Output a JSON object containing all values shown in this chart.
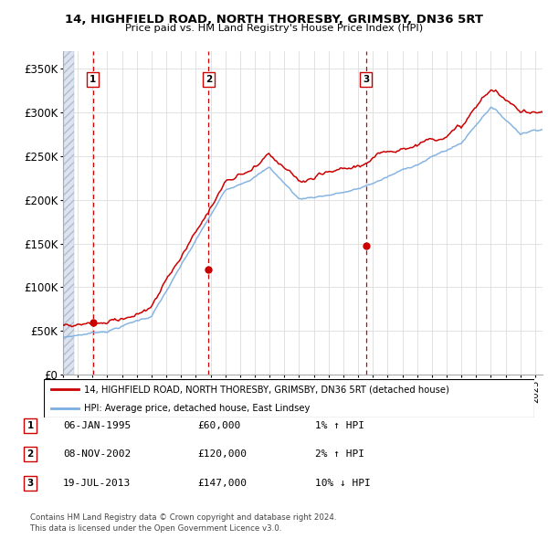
{
  "title": "14, HIGHFIELD ROAD, NORTH THORESBY, GRIMSBY, DN36 5RT",
  "subtitle": "Price paid vs. HM Land Registry's House Price Index (HPI)",
  "ylim": [
    0,
    370000
  ],
  "yticks": [
    0,
    50000,
    100000,
    150000,
    200000,
    250000,
    300000,
    350000
  ],
  "ytick_labels": [
    "£0",
    "£50K",
    "£100K",
    "£150K",
    "£200K",
    "£250K",
    "£300K",
    "£350K"
  ],
  "hpi_color": "#7aade0",
  "price_color": "#cc0000",
  "sale_dates": [
    1995.03,
    2002.86,
    2013.54
  ],
  "sale_prices": [
    60000,
    120000,
    147000
  ],
  "sale_labels": [
    "1",
    "2",
    "3"
  ],
  "vline_color": "#cc0000",
  "legend_price_label": "14, HIGHFIELD ROAD, NORTH THORESBY, GRIMSBY, DN36 5RT (detached house)",
  "legend_hpi_label": "HPI: Average price, detached house, East Lindsey",
  "table_entries": [
    {
      "label": "1",
      "date": "06-JAN-1995",
      "price": "£60,000",
      "hpi": "1% ↑ HPI"
    },
    {
      "label": "2",
      "date": "08-NOV-2002",
      "price": "£120,000",
      "hpi": "2% ↑ HPI"
    },
    {
      "label": "3",
      "date": "19-JUL-2013",
      "price": "£147,000",
      "hpi": "10% ↓ HPI"
    }
  ],
  "footer": "Contains HM Land Registry data © Crown copyright and database right 2024.\nThis data is licensed under the Open Government Licence v3.0.",
  "grid_color": "#dddddd",
  "bg_color": "white",
  "hatch_color": "#c8d0e0"
}
